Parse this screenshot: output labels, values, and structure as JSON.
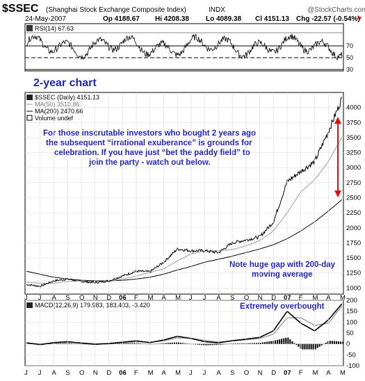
{
  "header": {
    "symbol": "$SSEC",
    "name": "(Shanghai Stock Exchange Composite Index)",
    "exchange": "INDX",
    "watermark": "@StockCharts.com",
    "date": "24-May-2007",
    "open": "Op 4188.67",
    "high": "Hi 4208.38",
    "low": "Lo 4089.38",
    "close": "Cl 4151.13",
    "change": "Chg -22.57 (-0.54%)",
    "change_arrow": "▼"
  },
  "rsi_panel": {
    "label": "RSI(14) 67.63",
    "ticks": [
      "70",
      "50",
      "30"
    ]
  },
  "price_panel": {
    "legend": {
      "price": "$SSEC (Daily) 4151.13",
      "ma50": "MA(50) 3510.86",
      "ma200": "MA(200) 2470.66",
      "volume": "Volume undef"
    },
    "ticks": [
      "4000",
      "3750",
      "3500",
      "3250",
      "3000",
      "2750",
      "2500",
      "2250",
      "2000",
      "1750",
      "1500",
      "1250",
      "1000"
    ],
    "chart_title": "2-year chart",
    "annotation_lines": [
      "For those inscrutable investors who bought 2 years ago",
      "the subsequent “irrational exuberance” is grounds for",
      "celebration. If you have just “bet the paddy field” to",
      "join the party - watch out below."
    ],
    "gap_note_lines": [
      "Note huge gap with 200-day",
      "moving average"
    ]
  },
  "macd_panel": {
    "label": "MACD(12,26,9) 179.983, 183.403, -3.420",
    "note": "Extremely overbought",
    "ticks": [
      "200",
      "150",
      "100",
      "50",
      "0",
      "-50",
      "-100"
    ]
  },
  "x_axis": {
    "labels": [
      "J",
      "J",
      "A",
      "S",
      "O",
      "N",
      "D",
      "06",
      "F",
      "M",
      "A",
      "M",
      "J",
      "J",
      "A",
      "S",
      "O",
      "N",
      "D",
      "07",
      "F",
      "M",
      "A",
      "M"
    ]
  },
  "colors": {
    "arrow": "#e01010",
    "annotation": "#2323c8",
    "ma50": "#9a9a9a",
    "ma200": "#000000"
  },
  "chart_data": {
    "type": "line",
    "title": "$SSEC (Shanghai Stock Exchange Composite Index)",
    "x": [
      "2005-06",
      "2005-07",
      "2005-08",
      "2005-09",
      "2005-10",
      "2005-11",
      "2005-12",
      "2006-01",
      "2006-02",
      "2006-03",
      "2006-04",
      "2006-05",
      "2006-06",
      "2006-07",
      "2006-08",
      "2006-09",
      "2006-10",
      "2006-11",
      "2006-12",
      "2007-01",
      "2007-02",
      "2007-03",
      "2007-04",
      "2007-05"
    ],
    "series": [
      {
        "name": "$SSEC (Daily)",
        "values": [
          1060,
          1030,
          1120,
          1150,
          1110,
          1090,
          1120,
          1200,
          1280,
          1270,
          1430,
          1650,
          1620,
          1620,
          1590,
          1750,
          1800,
          1850,
          2100,
          2770,
          2940,
          3100,
          3600,
          4151
        ]
      },
      {
        "name": "MA(50)",
        "values": [
          1100,
          1080,
          1080,
          1110,
          1120,
          1110,
          1110,
          1150,
          1200,
          1260,
          1320,
          1450,
          1570,
          1620,
          1620,
          1640,
          1700,
          1790,
          1950,
          2250,
          2600,
          2800,
          3100,
          3511
        ]
      },
      {
        "name": "MA(200)",
        "values": [
          1280,
          1230,
          1180,
          1150,
          1130,
          1120,
          1120,
          1130,
          1150,
          1180,
          1230,
          1300,
          1360,
          1430,
          1480,
          1530,
          1590,
          1650,
          1720,
          1820,
          1950,
          2100,
          2280,
          2471
        ]
      }
    ],
    "ylim": [
      900,
      4250
    ],
    "rsi": {
      "label": "RSI(14) 67.63",
      "ylim": [
        0,
        100
      ],
      "levels": [
        70,
        50,
        30
      ]
    },
    "macd": {
      "label": "MACD(12,26,9) 179.983, 183.403, -3.420",
      "macd": 179.983,
      "signal": 183.403,
      "histogram": -3.42,
      "ylim": [
        -100,
        200
      ]
    }
  }
}
